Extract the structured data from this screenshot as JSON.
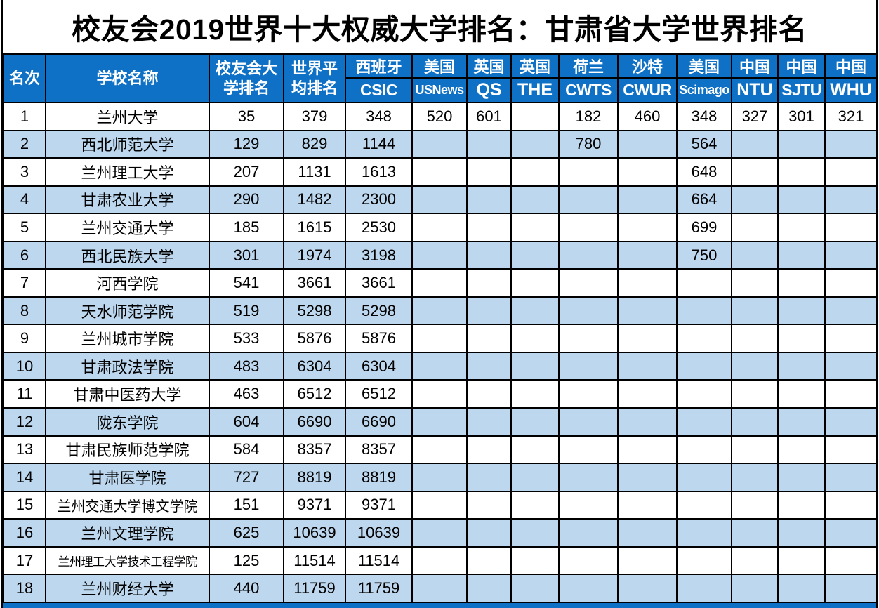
{
  "title": "校友会2019世界十大权威大学排名：甘肃省大学世界排名",
  "colors": {
    "header_blue": "#0E71C6",
    "row_alt_blue": "#BDD7EE",
    "border": "#000000",
    "header_text": "#FFFFFF",
    "body_text": "#000000"
  },
  "chart_data": {
    "type": "table",
    "title": "校友会2019世界十大权威大学排名：甘肃省大学世界排名",
    "columns": [
      {
        "key": "rank",
        "label": "名次"
      },
      {
        "key": "name",
        "label": "学校名称"
      },
      {
        "key": "cuaa",
        "label": "校友会大\n学排名"
      },
      {
        "key": "wavg",
        "label": "世界平\n均排名"
      },
      {
        "key": "csic",
        "country": "西班牙",
        "org": "CSIC"
      },
      {
        "key": "usnews",
        "country": "美国",
        "org": "USNews"
      },
      {
        "key": "qs",
        "country": "英国",
        "org": "QS"
      },
      {
        "key": "the",
        "country": "英国",
        "org": "THE"
      },
      {
        "key": "cwts",
        "country": "荷兰",
        "org": "CWTS"
      },
      {
        "key": "cwur",
        "country": "沙特",
        "org": "CWUR"
      },
      {
        "key": "scimago",
        "country": "美国",
        "org": "Scimago"
      },
      {
        "key": "ntu",
        "country": "中国",
        "org": "NTU"
      },
      {
        "key": "sjtu",
        "country": "中国",
        "org": "SJTU"
      },
      {
        "key": "whu",
        "country": "中国",
        "org": "WHU"
      }
    ],
    "rows": [
      [
        "1",
        "兰州大学",
        "35",
        "379",
        "348",
        "520",
        "601",
        "",
        "182",
        "460",
        "348",
        "327",
        "301",
        "321"
      ],
      [
        "2",
        "西北师范大学",
        "129",
        "829",
        "1144",
        "",
        "",
        "",
        "780",
        "",
        "564",
        "",
        "",
        ""
      ],
      [
        "3",
        "兰州理工大学",
        "207",
        "1131",
        "1613",
        "",
        "",
        "",
        "",
        "",
        "648",
        "",
        "",
        ""
      ],
      [
        "4",
        "甘肃农业大学",
        "290",
        "1482",
        "2300",
        "",
        "",
        "",
        "",
        "",
        "664",
        "",
        "",
        ""
      ],
      [
        "5",
        "兰州交通大学",
        "185",
        "1615",
        "2530",
        "",
        "",
        "",
        "",
        "",
        "699",
        "",
        "",
        ""
      ],
      [
        "6",
        "西北民族大学",
        "301",
        "1974",
        "3198",
        "",
        "",
        "",
        "",
        "",
        "750",
        "",
        "",
        ""
      ],
      [
        "7",
        "河西学院",
        "541",
        "3661",
        "3661",
        "",
        "",
        "",
        "",
        "",
        "",
        "",
        "",
        ""
      ],
      [
        "8",
        "天水师范学院",
        "519",
        "5298",
        "5298",
        "",
        "",
        "",
        "",
        "",
        "",
        "",
        "",
        ""
      ],
      [
        "9",
        "兰州城市学院",
        "533",
        "5876",
        "5876",
        "",
        "",
        "",
        "",
        "",
        "",
        "",
        "",
        ""
      ],
      [
        "10",
        "甘肃政法学院",
        "483",
        "6304",
        "6304",
        "",
        "",
        "",
        "",
        "",
        "",
        "",
        "",
        ""
      ],
      [
        "11",
        "甘肃中医药大学",
        "463",
        "6512",
        "6512",
        "",
        "",
        "",
        "",
        "",
        "",
        "",
        "",
        ""
      ],
      [
        "12",
        "陇东学院",
        "604",
        "6690",
        "6690",
        "",
        "",
        "",
        "",
        "",
        "",
        "",
        "",
        ""
      ],
      [
        "13",
        "甘肃民族师范学院",
        "584",
        "8357",
        "8357",
        "",
        "",
        "",
        "",
        "",
        "",
        "",
        "",
        ""
      ],
      [
        "14",
        "甘肃医学院",
        "727",
        "8819",
        "8819",
        "",
        "",
        "",
        "",
        "",
        "",
        "",
        "",
        ""
      ],
      [
        "15",
        "兰州交通大学博文学院",
        "151",
        "9371",
        "9371",
        "",
        "",
        "",
        "",
        "",
        "",
        "",
        "",
        ""
      ],
      [
        "16",
        "兰州文理学院",
        "625",
        "10639",
        "10639",
        "",
        "",
        "",
        "",
        "",
        "",
        "",
        "",
        ""
      ],
      [
        "17",
        "兰州理工大学技术工程学院",
        "125",
        "11514",
        "11514",
        "",
        "",
        "",
        "",
        "",
        "",
        "",
        "",
        ""
      ],
      [
        "18",
        "兰州财经大学",
        "440",
        "11759",
        "11759",
        "",
        "",
        "",
        "",
        "",
        "",
        "",
        "",
        ""
      ]
    ]
  }
}
